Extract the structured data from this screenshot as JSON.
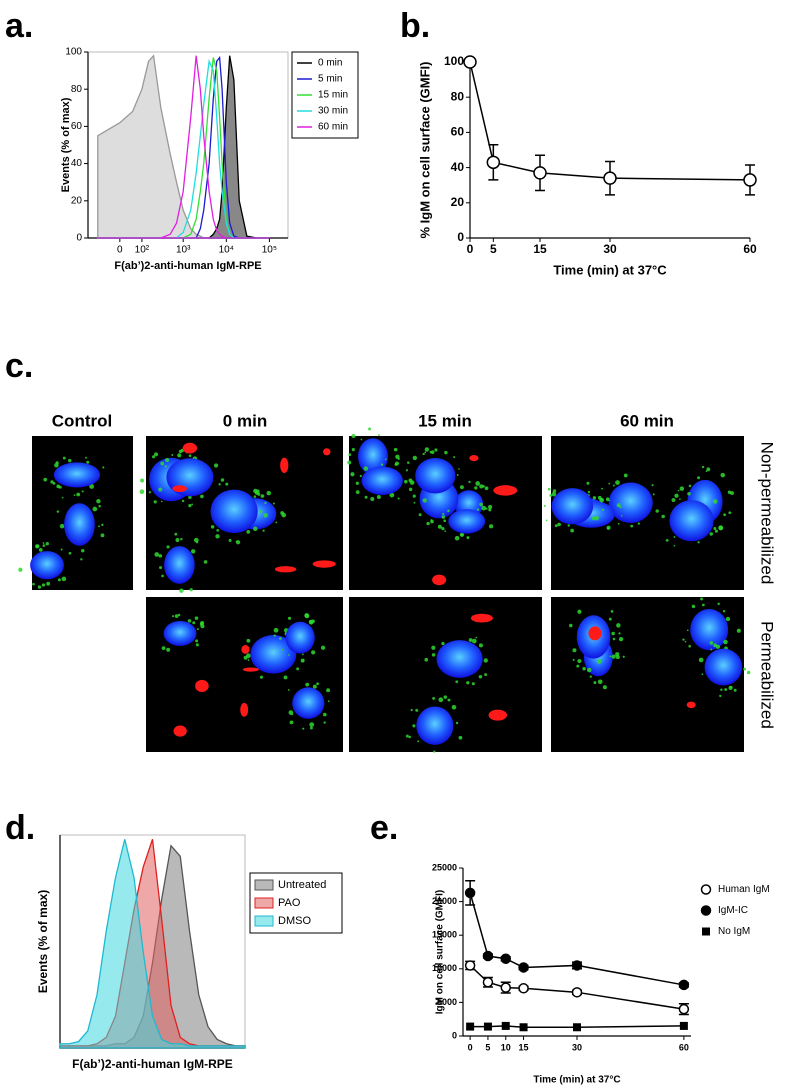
{
  "chart_data": [
    {
      "type": "area",
      "label": "a.",
      "xlabel": "F(ab’)2-anti-human IgM-RPE",
      "ylabel": "Events (% of max)",
      "xscale": "biexponential",
      "xlim": [
        -180,
        270000
      ],
      "ylim": [
        0,
        100
      ],
      "xticks": [
        0,
        {
          "value": 100,
          "label": "10²"
        },
        {
          "value": 1000,
          "label": "10³"
        },
        {
          "value": 10000,
          "label": "10⁴"
        },
        {
          "value": 100000,
          "label": "10⁵"
        }
      ],
      "yticks": [
        0,
        20,
        40,
        60,
        80,
        100
      ],
      "frame": true,
      "legend": "outside-right",
      "x": [
        -100,
        0,
        50,
        100,
        150,
        200,
        300,
        500,
        700,
        1000,
        1500,
        2000,
        2500,
        3000,
        4000,
        5000,
        6000,
        7000,
        8000,
        10000,
        12000,
        15000,
        20000,
        30000,
        50000,
        100000
      ],
      "series": [
        {
          "color": "#999999",
          "fill": "#dddddd",
          "values": [
            55,
            62,
            68,
            80,
            95,
            98,
            70,
            45,
            30,
            15,
            5,
            2,
            1,
            0,
            0,
            0,
            0,
            0,
            0,
            0,
            0,
            0,
            0,
            0,
            0,
            0
          ]
        },
        {
          "name": "0 min",
          "color": "#000000",
          "fill": "#888888",
          "values": [
            0,
            0,
            0,
            0,
            0,
            0,
            0,
            0,
            0,
            0,
            0,
            0,
            0,
            0,
            0,
            2,
            5,
            10,
            25,
            70,
            98,
            85,
            20,
            1,
            0,
            0
          ]
        },
        {
          "name": "5 min",
          "color": "#1a1ad0",
          "values": [
            0,
            0,
            0,
            0,
            0,
            0,
            0,
            0,
            0,
            0,
            0,
            0,
            5,
            15,
            40,
            75,
            95,
            97,
            80,
            30,
            8,
            1,
            0,
            0,
            0,
            0
          ]
        },
        {
          "name": "15 min",
          "color": "#33dd33",
          "values": [
            0,
            0,
            0,
            0,
            0,
            0,
            0,
            0,
            0,
            0,
            2,
            10,
            25,
            40,
            75,
            97,
            90,
            65,
            40,
            10,
            2,
            0,
            0,
            0,
            0,
            0
          ]
        },
        {
          "name": "30 min",
          "color": "#22dddd",
          "values": [
            0,
            0,
            0,
            0,
            0,
            0,
            0,
            0,
            0,
            3,
            15,
            35,
            55,
            72,
            95,
            90,
            65,
            40,
            25,
            8,
            2,
            0,
            0,
            0,
            0,
            0
          ]
        },
        {
          "name": "60 min",
          "color": "#e020e0",
          "values": [
            0,
            0,
            0,
            0,
            0,
            0,
            0,
            2,
            8,
            25,
            65,
            98,
            80,
            55,
            25,
            10,
            4,
            2,
            1,
            0,
            0,
            0,
            0,
            0,
            0,
            0
          ]
        }
      ]
    },
    {
      "type": "line",
      "label": "b.",
      "xlabel": "Time (min) at 37°C",
      "ylabel": "% IgM on cell surface (GMFI)",
      "xlim": [
        0,
        60
      ],
      "ylim": [
        0,
        100
      ],
      "xticks": [
        0,
        5,
        15,
        30,
        60
      ],
      "yticks": [
        0,
        20,
        40,
        60,
        80,
        100
      ],
      "x": [
        0,
        5,
        15,
        30,
        60
      ],
      "series": [
        {
          "color": "#000000",
          "marker": "circle-open",
          "values": [
            100,
            43,
            37,
            34,
            33
          ],
          "errors": [
            0,
            10,
            10,
            9.5,
            8.5
          ]
        }
      ]
    },
    {
      "type": "area",
      "label": "d.",
      "xlabel": "F(ab’)2-anti-human IgM-RPE",
      "ylabel": "Events (% of max)",
      "xlim": [
        0,
        100
      ],
      "ylim": [
        0,
        100
      ],
      "frame": true,
      "legend": "outside-right",
      "x": [
        0,
        5,
        10,
        15,
        20,
        25,
        30,
        35,
        40,
        45,
        50,
        55,
        60,
        65,
        70,
        75,
        80,
        85,
        90,
        95,
        100
      ],
      "series": [
        {
          "name": "Untreated",
          "color": "#555555",
          "fill": "#808080",
          "values": [
            1,
            1,
            1,
            1,
            1,
            1,
            2,
            2,
            5,
            15,
            40,
            70,
            95,
            90,
            55,
            25,
            10,
            4,
            2,
            1,
            1
          ]
        },
        {
          "name": "PAO",
          "color": "#e02020",
          "fill": "#e06060",
          "values": [
            1,
            1,
            1,
            1,
            2,
            5,
            15,
            40,
            65,
            85,
            98,
            60,
            20,
            5,
            2,
            1,
            1,
            1,
            1,
            1,
            1
          ]
        },
        {
          "name": "DMSO",
          "color": "#20b8d0",
          "fill": "#40d8e0",
          "values": [
            2,
            2,
            3,
            8,
            25,
            55,
            80,
            98,
            80,
            45,
            15,
            4,
            2,
            2,
            1,
            1,
            1,
            1,
            1,
            1,
            1
          ]
        }
      ]
    },
    {
      "type": "line",
      "label": "e.",
      "xlabel": "Time (min) at 37°C",
      "ylabel": "IgM on cell surface (GMFI)",
      "xlim": [
        -2,
        62
      ],
      "ylim": [
        0,
        25000
      ],
      "xticks": [
        0,
        5,
        10,
        15,
        30,
        60
      ],
      "yticks": [
        0,
        5000,
        10000,
        15000,
        20000,
        25000
      ],
      "legend": "outside-right",
      "x": [
        0,
        5,
        10,
        15,
        30,
        60
      ],
      "series": [
        {
          "name": "Human IgM",
          "color": "#000000",
          "marker": "circle-open",
          "values": [
            10500,
            8000,
            7200,
            7100,
            6500,
            4000
          ],
          "errors": [
            600,
            700,
            800,
            300,
            300,
            800
          ]
        },
        {
          "name": "IgM-IC",
          "color": "#000000",
          "marker": "circle",
          "values": [
            21300,
            11900,
            11500,
            10200,
            10500,
            7600
          ],
          "errors": [
            1800,
            300,
            300,
            300,
            500,
            300
          ]
        },
        {
          "name": "No IgM",
          "color": "#000000",
          "marker": "square",
          "values": [
            1400,
            1400,
            1500,
            1300,
            1300,
            1500
          ]
        }
      ]
    }
  ],
  "images": {
    "label": "c.",
    "columns": [
      "Control",
      "0 min",
      "15 min",
      "60 min"
    ],
    "rows": [
      "Non-permeabilized",
      "Permeabilized"
    ]
  }
}
